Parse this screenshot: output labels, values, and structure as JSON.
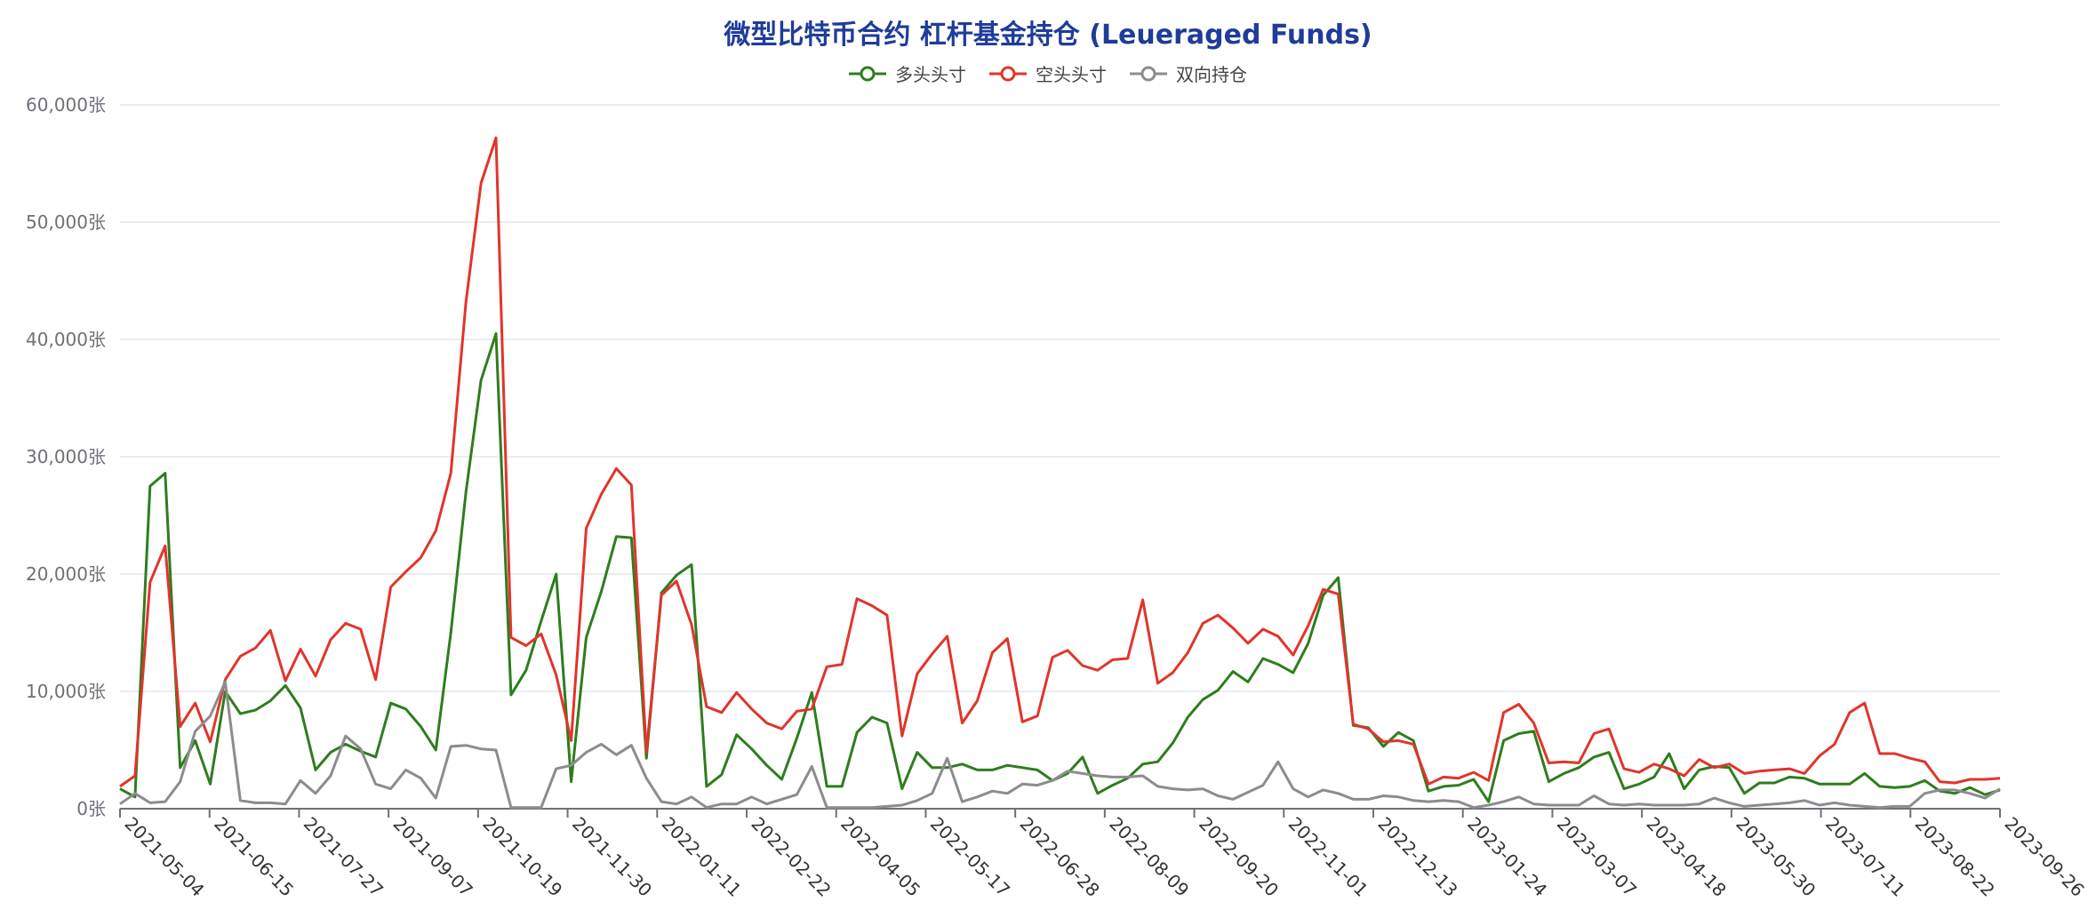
{
  "chart_data": {
    "type": "line",
    "title": "微型比特币合约 杠杆基金持仓 (Leueraged Funds)",
    "xlabel": "",
    "ylabel": "",
    "ylim": [
      0,
      60000
    ],
    "y_ticks": [
      "0张",
      "10,000张",
      "20,000张",
      "30,000张",
      "40,000张",
      "50,000张",
      "60,000张"
    ],
    "x_tick_labels": [
      "2021-05-04",
      "2021-06-15",
      "2021-07-27",
      "2021-09-07",
      "2021-10-19",
      "2021-11-30",
      "2022-01-11",
      "2022-02-22",
      "2022-04-05",
      "2022-05-17",
      "2022-06-28",
      "2022-08-09",
      "2022-09-20",
      "2022-11-01",
      "2022-12-13",
      "2023-01-24",
      "2023-03-07",
      "2023-04-18",
      "2023-05-30",
      "2023-07-11",
      "2023-08-22",
      "2023-09-26"
    ],
    "grid": true,
    "legend_position": "top-center",
    "series": [
      {
        "name": "多头头寸",
        "color": "#2e7d1e",
        "values": [
          1700,
          1000,
          27500,
          28600,
          3500,
          5800,
          2100,
          10000,
          8100,
          8400,
          9200,
          10500,
          8600,
          3300,
          4800,
          5500,
          4900,
          4400,
          9000,
          8500,
          7000,
          5000,
          15000,
          27000,
          36500,
          40500,
          9700,
          11800,
          16000,
          20000,
          2300,
          14600,
          18500,
          23200,
          23100,
          4300,
          18400,
          19900,
          20800,
          1900,
          2900,
          6300,
          5100,
          3700,
          2500,
          6000,
          9900,
          1900,
          1900,
          6500,
          7800,
          7300,
          1700,
          4800,
          3500,
          3500,
          3800,
          3300,
          3300,
          3700,
          3500,
          3300,
          2400,
          3000,
          4400,
          1300,
          2000,
          2600,
          3800,
          4000,
          5600,
          7800,
          9300,
          10100,
          11700,
          10800,
          12800,
          12300,
          11600,
          14100,
          18200,
          19700,
          7100,
          6900,
          5300,
          6500,
          5800,
          1500,
          1900,
          2000,
          2500,
          600,
          5800,
          6400,
          6600,
          2300,
          3000,
          3500,
          4400,
          4800,
          1700,
          2100,
          2700,
          4700,
          1700,
          3300,
          3600,
          3500,
          1300,
          2200,
          2200,
          2700,
          2600,
          2100,
          2100,
          2100,
          3000,
          1900,
          1800,
          1900,
          2400,
          1500,
          1300,
          1800,
          1200,
          1600
        ]
      },
      {
        "name": "空头头寸",
        "color": "#e0352b",
        "values": [
          1900,
          2800,
          19300,
          22400,
          7000,
          9000,
          5700,
          11000,
          13000,
          13700,
          15200,
          10900,
          13600,
          11300,
          14400,
          15800,
          15300,
          11000,
          18900,
          20200,
          21400,
          23700,
          28600,
          43200,
          53300,
          57200,
          14600,
          13900,
          14900,
          11400,
          5800,
          23900,
          26800,
          29000,
          27600,
          4800,
          18200,
          19400,
          15700,
          8700,
          8200,
          9900,
          8500,
          7300,
          6800,
          8300,
          8500,
          12100,
          12300,
          17900,
          17300,
          16500,
          6200,
          11500,
          13200,
          14700,
          7300,
          9200,
          13300,
          14500,
          7400,
          7900,
          12900,
          13500,
          12200,
          11800,
          12700,
          12800,
          17800,
          10700,
          11600,
          13300,
          15800,
          16500,
          15400,
          14100,
          15300,
          14700,
          13100,
          15600,
          18700,
          18300,
          7200,
          6800,
          5700,
          5800,
          5500,
          2100,
          2700,
          2600,
          3100,
          2400,
          8200,
          8900,
          7300,
          3900,
          4000,
          3900,
          6400,
          6800,
          3400,
          3100,
          3800,
          3400,
          2800,
          4200,
          3500,
          3800,
          3000,
          3200,
          3300,
          3400,
          3000,
          4500,
          5500,
          8200,
          9000,
          4700,
          4700,
          4300,
          4000,
          2300,
          2200,
          2500,
          2500,
          2600
        ]
      },
      {
        "name": "双向持仓",
        "color": "#8c8c8c",
        "values": [
          400,
          1300,
          500,
          600,
          2300,
          6600,
          7900,
          10800,
          700,
          500,
          500,
          400,
          2400,
          1300,
          2800,
          6200,
          5100,
          2100,
          1700,
          3300,
          2600,
          900,
          5300,
          5400,
          5100,
          5000,
          100,
          100,
          100,
          3400,
          3700,
          4800,
          5500,
          4600,
          5400,
          2600,
          600,
          400,
          1000,
          100,
          400,
          400,
          1000,
          400,
          800,
          1200,
          3600,
          100,
          100,
          100,
          100,
          200,
          300,
          700,
          1300,
          4300,
          600,
          1000,
          1500,
          1300,
          2100,
          2000,
          2400,
          3200,
          3000,
          2800,
          2700,
          2700,
          2800,
          1900,
          1700,
          1600,
          1700,
          1100,
          800,
          1400,
          2000,
          4000,
          1700,
          1000,
          1600,
          1300,
          800,
          800,
          1100,
          1000,
          700,
          600,
          700,
          600,
          100,
          300,
          600,
          1000,
          400,
          300,
          300,
          300,
          1100,
          400,
          300,
          400,
          300,
          300,
          300,
          400,
          900,
          500,
          200,
          300,
          400,
          500,
          700,
          300,
          500,
          300,
          200,
          100,
          200,
          200,
          1300,
          1600,
          1600,
          1300,
          900,
          1700
        ]
      }
    ]
  }
}
